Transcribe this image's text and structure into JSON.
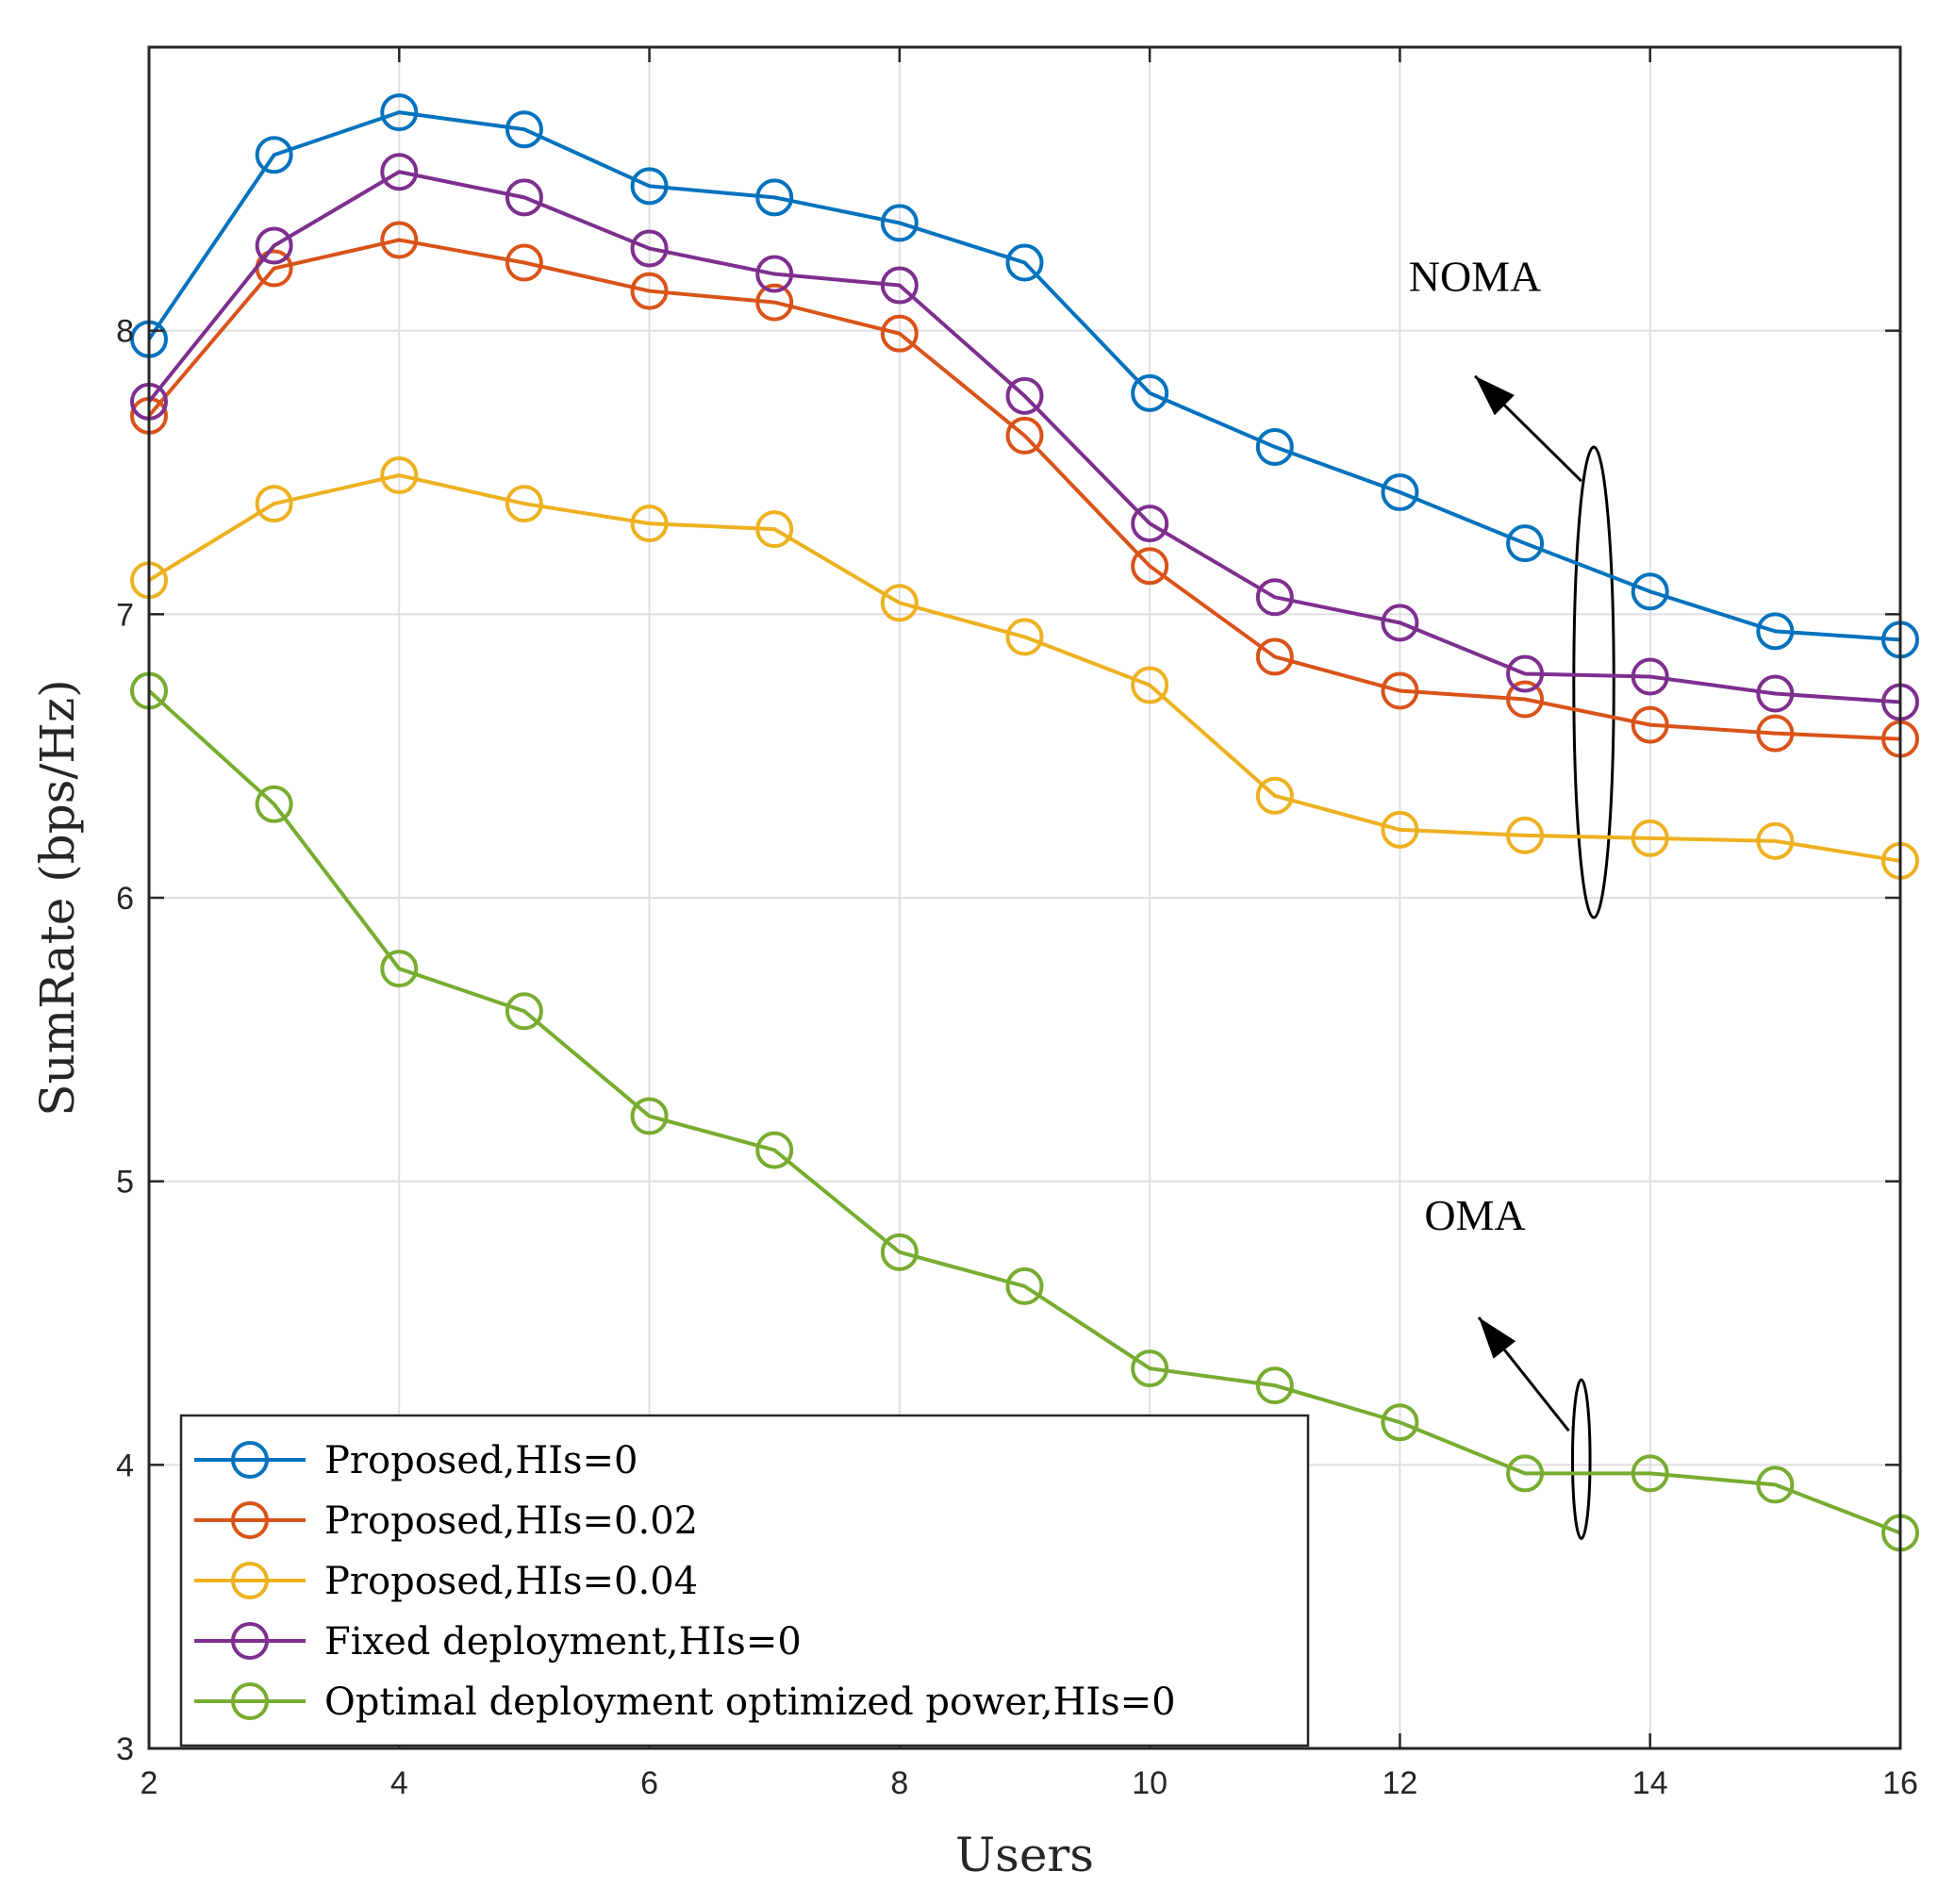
{
  "chart_data": {
    "type": "line",
    "title": "",
    "xlabel": "Users",
    "ylabel": "SumRate (bps/Hz)",
    "xlim": [
      2,
      16
    ],
    "ylim": [
      3,
      9
    ],
    "xticks": [
      2,
      4,
      6,
      8,
      10,
      12,
      14,
      16
    ],
    "yticks": [
      3,
      4,
      5,
      6,
      7,
      8
    ],
    "grid": true,
    "legend_position": "bottom-left",
    "x": [
      2,
      3,
      4,
      5,
      6,
      7,
      8,
      9,
      10,
      11,
      12,
      13,
      14,
      15,
      16
    ],
    "series": [
      {
        "name": "Proposed,HIs=0",
        "color": "#0072BD",
        "values": [
          7.97,
          8.62,
          8.77,
          8.71,
          8.51,
          8.47,
          8.38,
          8.24,
          7.78,
          7.59,
          7.43,
          7.25,
          7.08,
          6.94,
          6.91
        ]
      },
      {
        "name": "Proposed,HIs=0.02",
        "color": "#D95319",
        "values": [
          7.7,
          8.22,
          8.32,
          8.24,
          8.14,
          8.1,
          7.99,
          7.63,
          7.17,
          6.85,
          6.73,
          6.7,
          6.61,
          6.58,
          6.56
        ]
      },
      {
        "name": "Proposed,HIs=0.04",
        "color": "#EDB120",
        "values": [
          7.12,
          7.39,
          7.49,
          7.39,
          7.32,
          7.3,
          7.04,
          6.92,
          6.75,
          6.36,
          6.24,
          6.22,
          6.21,
          6.2,
          6.13
        ]
      },
      {
        "name": "Fixed deployment,HIs=0",
        "color": "#7E2F8E",
        "values": [
          7.75,
          8.3,
          8.56,
          8.47,
          8.29,
          8.2,
          8.16,
          7.77,
          7.32,
          7.06,
          6.97,
          6.79,
          6.78,
          6.72,
          6.69
        ]
      },
      {
        "name": "Optimal deployment optimized power,HIs=0",
        "color": "#77AC30",
        "values": [
          6.73,
          6.33,
          5.75,
          5.6,
          5.23,
          5.11,
          4.75,
          4.63,
          4.34,
          4.28,
          4.15,
          3.97,
          3.97,
          3.93,
          3.76
        ]
      }
    ],
    "annotations": [
      {
        "text": "NOMA",
        "x": 12.6,
        "y": 8.14,
        "arrow_tip": [
          12.6,
          7.84
        ],
        "arrow_tail": [
          13.45,
          7.47
        ],
        "ellipse": {
          "cx": 13.55,
          "cy": 6.76,
          "rx": 0.16,
          "ry": 0.83
        }
      },
      {
        "text": "OMA",
        "x": 12.6,
        "y": 4.83,
        "arrow_tip": [
          12.63,
          4.52
        ],
        "arrow_tail": [
          13.35,
          4.12
        ],
        "ellipse": {
          "cx": 13.45,
          "cy": 4.02,
          "rx": 0.07,
          "ry": 0.28
        }
      }
    ]
  }
}
